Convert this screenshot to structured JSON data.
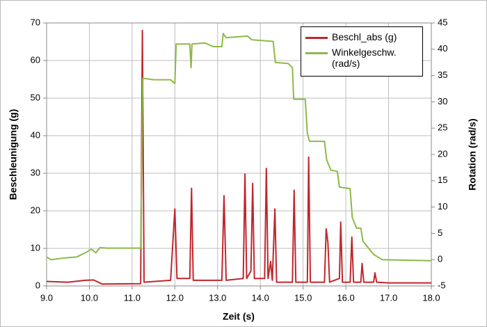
{
  "chart_data": {
    "type": "line",
    "x_label": "Zeit (s)",
    "y_label": "Beschleunigung (g)",
    "y2_label": "Rotation (rad/s)",
    "xlim": [
      9,
      18
    ],
    "xticks": [
      {
        "value": 9,
        "label": "9.0"
      },
      {
        "value": 10,
        "label": "10.0"
      },
      {
        "value": 11,
        "label": "11.0"
      },
      {
        "value": 12,
        "label": "12.0"
      },
      {
        "value": 13,
        "label": "13.0"
      },
      {
        "value": 14,
        "label": "14.0"
      },
      {
        "value": 15,
        "label": "15.0"
      },
      {
        "value": 16,
        "label": "16.0"
      },
      {
        "value": 17,
        "label": "17.0"
      },
      {
        "value": 18,
        "label": "18.0"
      }
    ],
    "ylim": [
      0,
      70
    ],
    "yticks": [
      0,
      10,
      20,
      30,
      40,
      50,
      60,
      70
    ],
    "y2lim": [
      -5,
      45
    ],
    "y2ticks": [
      -5,
      0,
      5,
      10,
      15,
      20,
      25,
      30,
      35,
      40,
      45
    ],
    "grid": true,
    "series": [
      {
        "name": "Beschl_abs (g)",
        "color": "#c0262d",
        "x": [
          9.0,
          9.5,
          9.9,
          10.1,
          10.3,
          11.2,
          11.24,
          11.28,
          11.9,
          12.0,
          12.05,
          12.35,
          12.39,
          12.43,
          13.1,
          13.15,
          13.2,
          13.6,
          13.64,
          13.68,
          13.78,
          13.82,
          13.86,
          14.1,
          14.14,
          14.18,
          14.24,
          14.28,
          14.34,
          14.38,
          14.75,
          14.79,
          14.83,
          15.1,
          15.13,
          15.17,
          15.5,
          15.54,
          15.58,
          15.62,
          15.85,
          15.88,
          15.92,
          16.1,
          16.14,
          16.18,
          16.35,
          16.38,
          16.42,
          16.65,
          16.68,
          16.72,
          17.0,
          18.0
        ],
        "values": [
          1.2,
          1.0,
          1.5,
          1.6,
          0.5,
          0.6,
          68,
          1,
          1.5,
          20.5,
          2,
          2,
          26,
          1.5,
          1.5,
          24,
          1.5,
          2,
          29.8,
          2,
          4,
          27.3,
          2,
          2,
          31.3,
          2,
          6.5,
          1.5,
          20.5,
          1,
          1,
          25.5,
          1,
          1,
          34.3,
          1,
          1,
          15.2,
          11.6,
          1,
          2,
          17,
          1,
          1,
          13,
          1,
          1,
          6,
          1,
          1,
          3.5,
          1,
          0.8,
          0.8
        ]
      },
      {
        "name": "Winkelgeschw. (rad/s)",
        "color": "#8db848",
        "axis": "y2",
        "x": [
          9.0,
          9.1,
          9.4,
          9.7,
          9.95,
          10.05,
          10.15,
          10.25,
          10.4,
          11.2,
          11.25,
          11.5,
          11.9,
          12.0,
          12.03,
          12.35,
          12.38,
          12.4,
          12.7,
          12.9,
          13.1,
          13.13,
          13.2,
          13.7,
          13.8,
          14.3,
          14.35,
          14.65,
          14.75,
          14.78,
          15.05,
          15.1,
          15.15,
          15.5,
          15.55,
          15.65,
          15.8,
          15.85,
          16.1,
          16.15,
          16.25,
          16.35,
          16.4,
          16.5,
          16.6,
          16.65,
          16.75,
          16.85,
          18.0
        ],
        "values": [
          0.5,
          0,
          0.3,
          0.5,
          1.5,
          2,
          1.3,
          2.3,
          2.2,
          2.2,
          34.5,
          34.2,
          34.2,
          33.5,
          41,
          41,
          36.5,
          41,
          41.2,
          40.5,
          40.5,
          43,
          42.2,
          42.5,
          41.8,
          41.5,
          37.5,
          37.3,
          36.5,
          30.5,
          30.5,
          24,
          22.5,
          22.5,
          19,
          17,
          16.8,
          13.8,
          13.5,
          8,
          6,
          6,
          3.5,
          2.5,
          1.5,
          1,
          0.5,
          0,
          -0.2
        ]
      }
    ]
  }
}
